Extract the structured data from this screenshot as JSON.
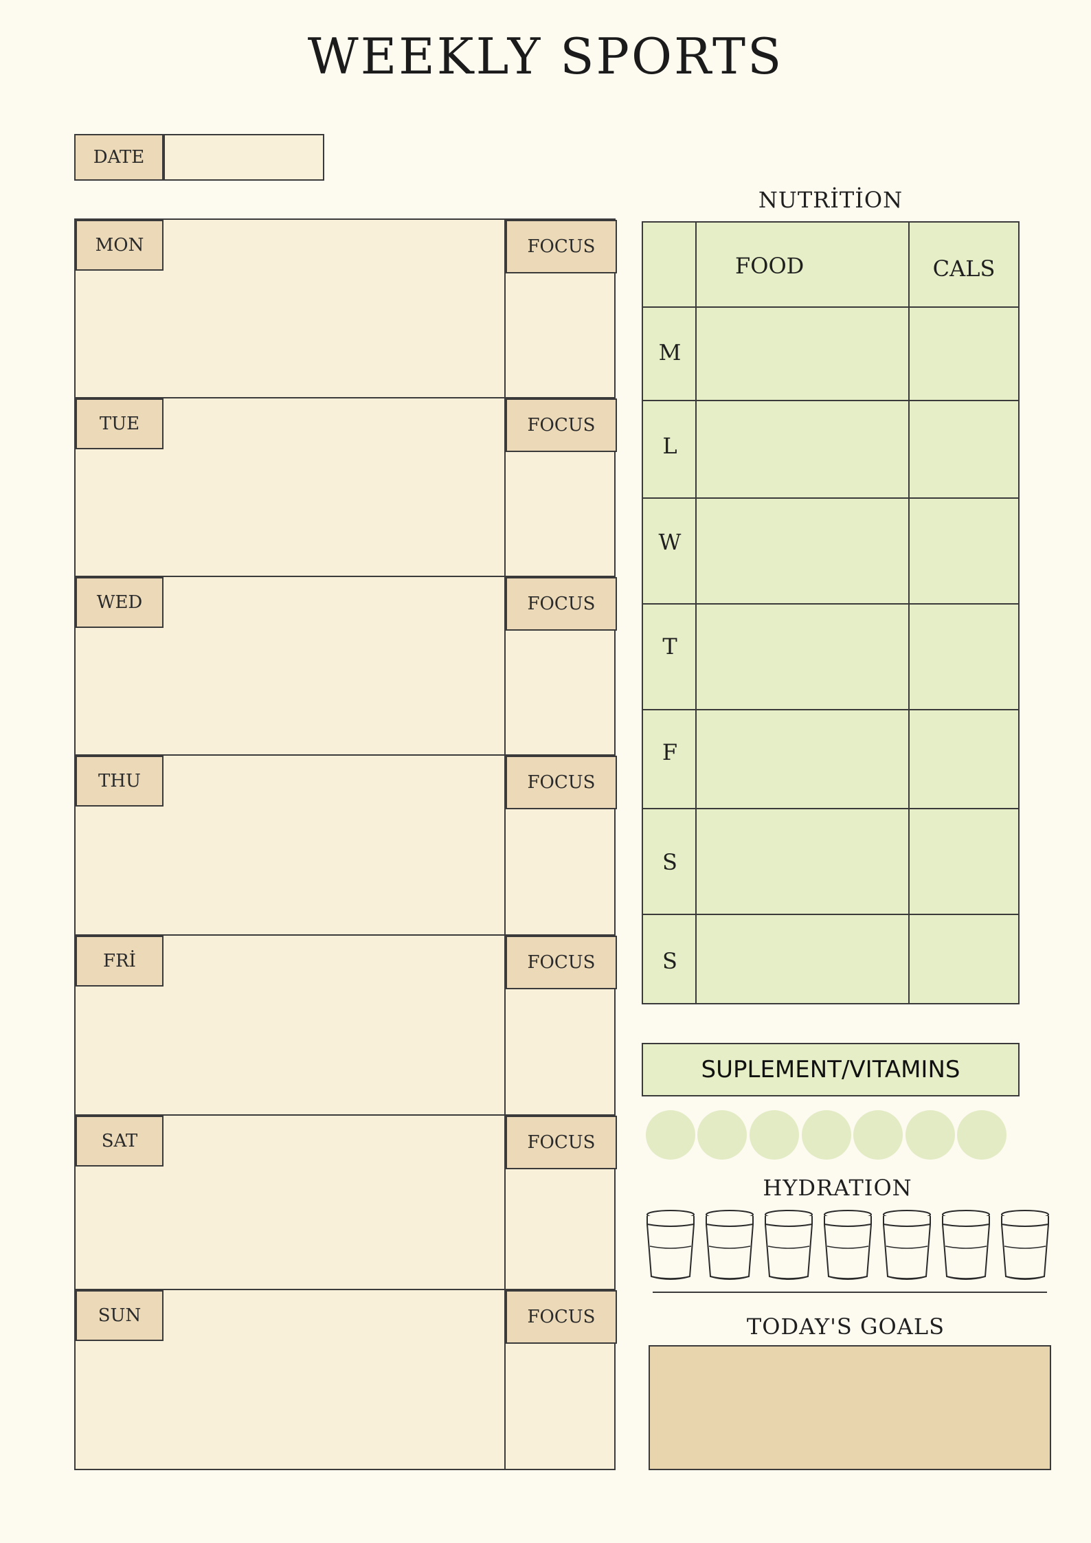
{
  "title": "WEEKLY SPORTS",
  "date": {
    "label": "DATE",
    "value": ""
  },
  "days": [
    {
      "label": "MON",
      "focus": "FOCUS"
    },
    {
      "label": "TUE",
      "focus": "FOCUS"
    },
    {
      "label": "WED",
      "focus": "FOCUS"
    },
    {
      "label": "THU",
      "focus": "FOCUS"
    },
    {
      "label": "FRİ",
      "focus": "FOCUS"
    },
    {
      "label": "SAT",
      "focus": "FOCUS"
    },
    {
      "label": "SUN",
      "focus": "FOCUS"
    }
  ],
  "nutrition": {
    "title": "NUTRİTİON",
    "headers": {
      "food": "FOOD",
      "cals": "CALS"
    },
    "days": [
      "M",
      "L",
      "W",
      "T",
      "F",
      "S",
      "S"
    ]
  },
  "supplements": {
    "label": "SUPLEMENT/VITAMINS",
    "count": 7
  },
  "hydration": {
    "label": "HYDRATION",
    "cups": 7
  },
  "goals": {
    "label": "TODAY'S GOALS"
  },
  "colors": {
    "page": "#fdfaf0",
    "day_box": "#f8f0d9",
    "tag": "#ebd9b8",
    "nutrition": "#e5eec6",
    "supplement_dot": "#e3ebc4",
    "goals": "#e8d4ad"
  }
}
